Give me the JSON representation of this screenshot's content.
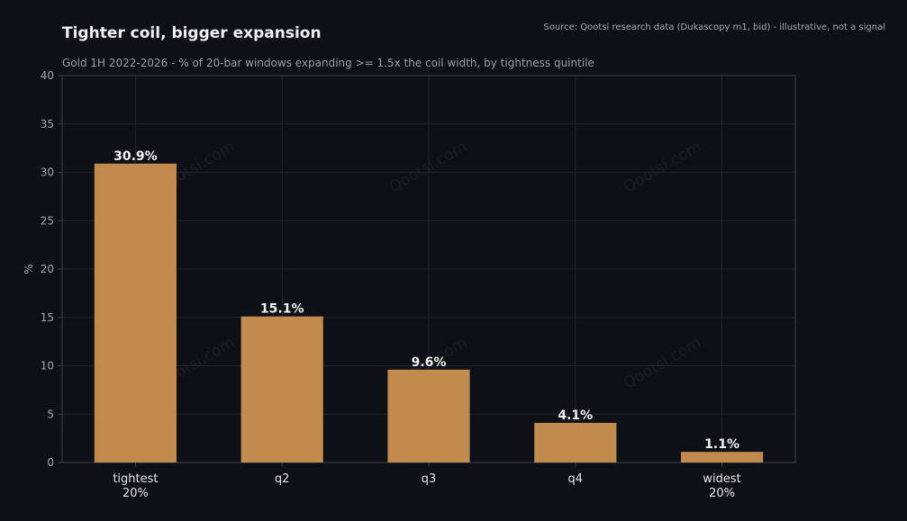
{
  "chart_data": {
    "type": "bar",
    "title": "Tighter coil, bigger expansion",
    "subtitle": "Gold 1H 2022-2026 - % of 20-bar windows expanding >= 1.5x the coil width, by tightness quintile",
    "source": "Source: Qootsi research data (Dukascopy m1, bid) - illustrative, not a signal",
    "xlabel": "",
    "ylabel": "%",
    "categories": [
      [
        "tightest",
        "20%"
      ],
      [
        "q2"
      ],
      [
        "q3"
      ],
      [
        "q4"
      ],
      [
        "widest",
        "20%"
      ]
    ],
    "values": [
      30.9,
      15.1,
      9.6,
      4.1,
      1.1
    ],
    "data_labels": [
      "30.9%",
      "15.1%",
      "9.6%",
      "4.1%",
      "1.1%"
    ],
    "ylim": [
      0,
      40
    ],
    "yticks": [
      0,
      5,
      10,
      15,
      20,
      25,
      30,
      35,
      40
    ],
    "grid": true,
    "watermark": "Qootsi.com",
    "colors": {
      "background": "#0d1017",
      "bar": "#c28b4e",
      "grid": "#1f242c",
      "axis": "#3a3f47"
    }
  }
}
